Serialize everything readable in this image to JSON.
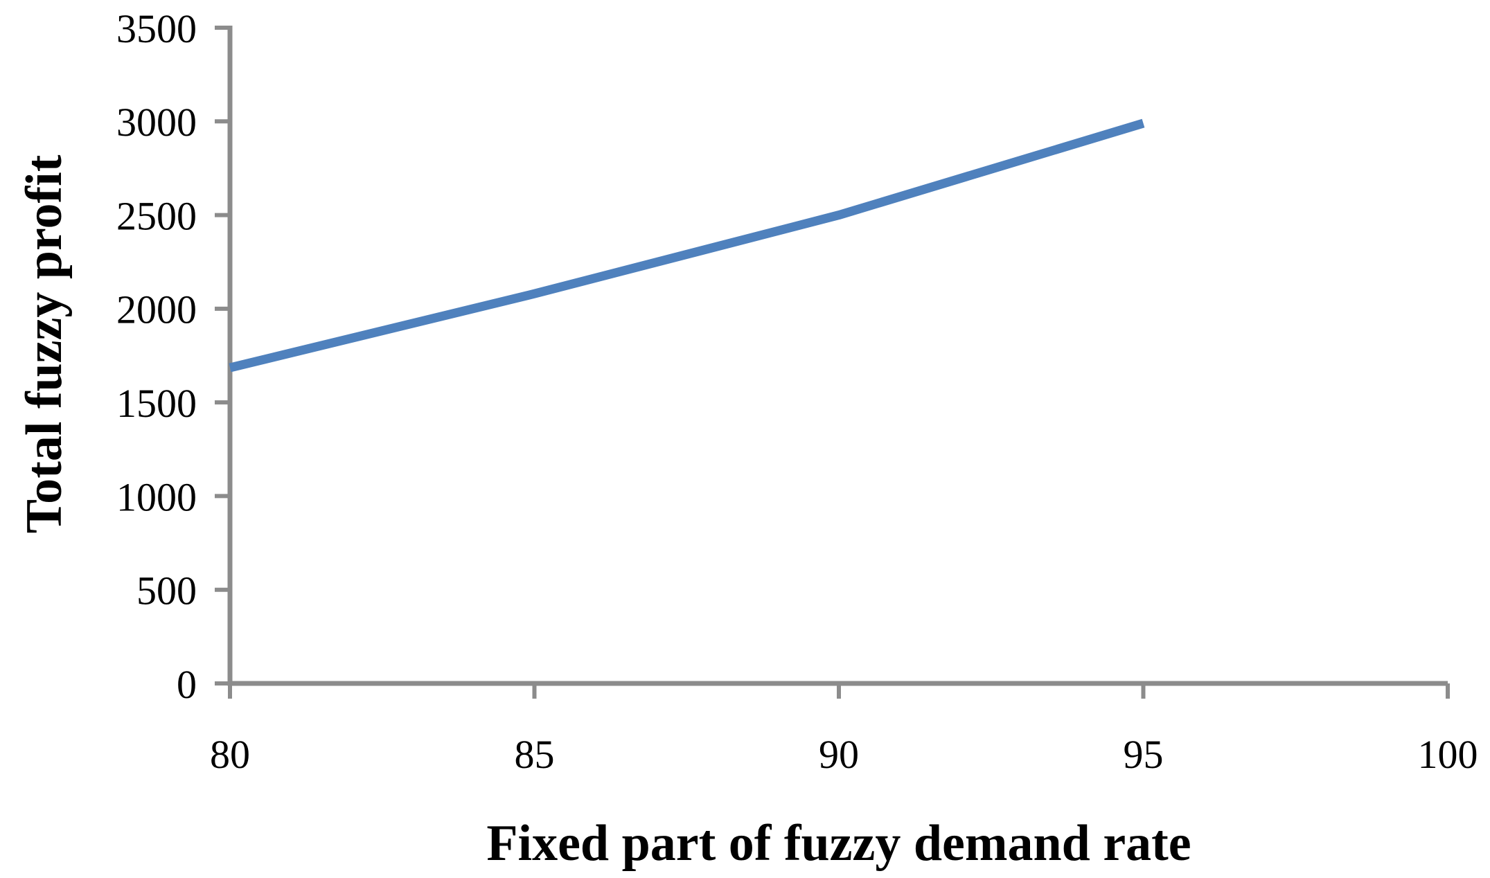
{
  "chart_data": {
    "type": "line",
    "title": "",
    "xlabel": "Fixed part of fuzzy demand rate",
    "ylabel": "Total fuzzy profit",
    "series": [
      {
        "name": "total-fuzzy-profit",
        "x": [
          80,
          85,
          90,
          95
        ],
        "y": [
          1685,
          2080,
          2500,
          2990
        ]
      }
    ],
    "xlim": [
      80,
      100
    ],
    "ylim": [
      0,
      3500
    ],
    "x_ticks": [
      80,
      85,
      90,
      95,
      100
    ],
    "x_tick_labels": [
      "80",
      "85",
      "90",
      "95",
      "100"
    ],
    "y_ticks": [
      0,
      500,
      1000,
      1500,
      2000,
      2500,
      3000,
      3500
    ],
    "y_tick_labels": [
      "0",
      "500",
      "1000",
      "1500",
      "2000",
      "2500",
      "3000",
      "3500"
    ],
    "grid": false,
    "legend_position": "none",
    "colors": {
      "line": "#4f81bd",
      "axis": "#8c8c8c",
      "text": "#000000",
      "background": "#ffffff"
    }
  }
}
